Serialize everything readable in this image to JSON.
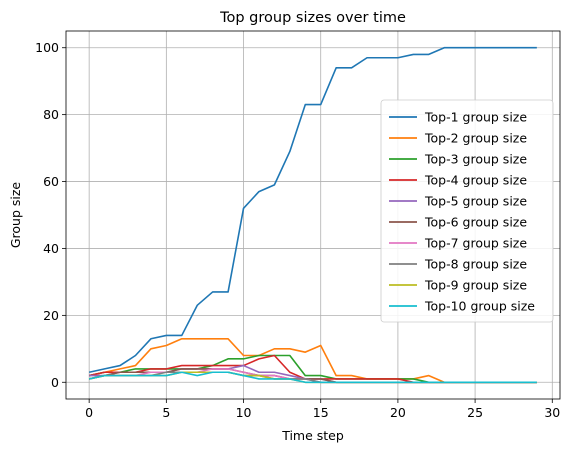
{
  "chart_data": {
    "type": "line",
    "title": "Top group sizes over time",
    "xlabel": "Time step",
    "ylabel": "Group size",
    "xlim": [
      -1.5,
      30.5
    ],
    "ylim": [
      -5,
      105
    ],
    "xticks": [
      0,
      5,
      10,
      15,
      20,
      25,
      30
    ],
    "yticks": [
      0,
      20,
      40,
      60,
      80,
      100
    ],
    "grid": true,
    "legend_position": "center-right",
    "x": [
      0,
      1,
      2,
      3,
      4,
      5,
      6,
      7,
      8,
      9,
      10,
      11,
      12,
      13,
      14,
      15,
      16,
      17,
      18,
      19,
      20,
      21,
      22,
      23,
      24,
      25,
      26,
      27,
      28,
      29
    ],
    "series": [
      {
        "name": "Top-1 group size",
        "color": "#1f77b4",
        "values": [
          3,
          4,
          5,
          8,
          13,
          14,
          14,
          23,
          27,
          27,
          52,
          57,
          59,
          69,
          83,
          83,
          94,
          94,
          97,
          97,
          97,
          98,
          98,
          100,
          100,
          100,
          100,
          100,
          100,
          100
        ]
      },
      {
        "name": "Top-2 group size",
        "color": "#ff7f0e",
        "values": [
          2,
          3,
          4,
          5,
          10,
          11,
          13,
          13,
          13,
          13,
          8,
          8,
          10,
          10,
          9,
          11,
          2,
          2,
          1,
          1,
          1,
          1,
          2,
          0,
          0,
          0,
          0,
          0,
          0,
          0
        ]
      },
      {
        "name": "Top-3 group size",
        "color": "#2ca02c",
        "values": [
          2,
          3,
          3,
          4,
          4,
          4,
          4,
          4,
          5,
          7,
          7,
          8,
          8,
          8,
          2,
          2,
          1,
          1,
          1,
          1,
          1,
          1,
          0,
          0,
          0,
          0,
          0,
          0,
          0,
          0
        ]
      },
      {
        "name": "Top-4 group size",
        "color": "#d62728",
        "values": [
          2,
          3,
          3,
          3,
          4,
          4,
          5,
          5,
          5,
          5,
          5,
          7,
          8,
          3,
          1,
          1,
          1,
          1,
          1,
          1,
          1,
          0,
          0,
          0,
          0,
          0,
          0,
          0,
          0,
          0
        ]
      },
      {
        "name": "Top-5 group size",
        "color": "#9467bd",
        "values": [
          2,
          2,
          3,
          3,
          3,
          3,
          4,
          4,
          4,
          4,
          5,
          3,
          3,
          2,
          1,
          1,
          0,
          0,
          0,
          0,
          0,
          0,
          0,
          0,
          0,
          0,
          0,
          0,
          0,
          0
        ]
      },
      {
        "name": "Top-6 group size",
        "color": "#8c564b",
        "values": [
          1,
          2,
          3,
          3,
          3,
          3,
          4,
          4,
          4,
          4,
          3,
          2,
          2,
          1,
          1,
          1,
          0,
          0,
          0,
          0,
          0,
          0,
          0,
          0,
          0,
          0,
          0,
          0,
          0,
          0
        ]
      },
      {
        "name": "Top-7 group size",
        "color": "#e377c2",
        "values": [
          1,
          2,
          2,
          2,
          3,
          3,
          3,
          3,
          4,
          4,
          3,
          2,
          2,
          1,
          1,
          0,
          0,
          0,
          0,
          0,
          0,
          0,
          0,
          0,
          0,
          0,
          0,
          0,
          0,
          0
        ]
      },
      {
        "name": "Top-8 group size",
        "color": "#7f7f7f",
        "values": [
          1,
          2,
          2,
          2,
          2,
          3,
          3,
          3,
          3,
          3,
          2,
          2,
          1,
          1,
          1,
          0,
          0,
          0,
          0,
          0,
          0,
          0,
          0,
          0,
          0,
          0,
          0,
          0,
          0,
          0
        ]
      },
      {
        "name": "Top-9 group size",
        "color": "#bcbd22",
        "values": [
          1,
          2,
          2,
          2,
          2,
          2,
          3,
          3,
          3,
          3,
          2,
          2,
          1,
          1,
          0,
          0,
          0,
          0,
          0,
          0,
          0,
          0,
          0,
          0,
          0,
          0,
          0,
          0,
          0,
          0
        ]
      },
      {
        "name": "Top-10 group size",
        "color": "#17becf",
        "values": [
          1,
          2,
          2,
          2,
          2,
          2,
          3,
          2,
          3,
          3,
          2,
          1,
          1,
          1,
          0,
          0,
          0,
          0,
          0,
          0,
          0,
          0,
          0,
          0,
          0,
          0,
          0,
          0,
          0,
          0
        ]
      }
    ]
  }
}
